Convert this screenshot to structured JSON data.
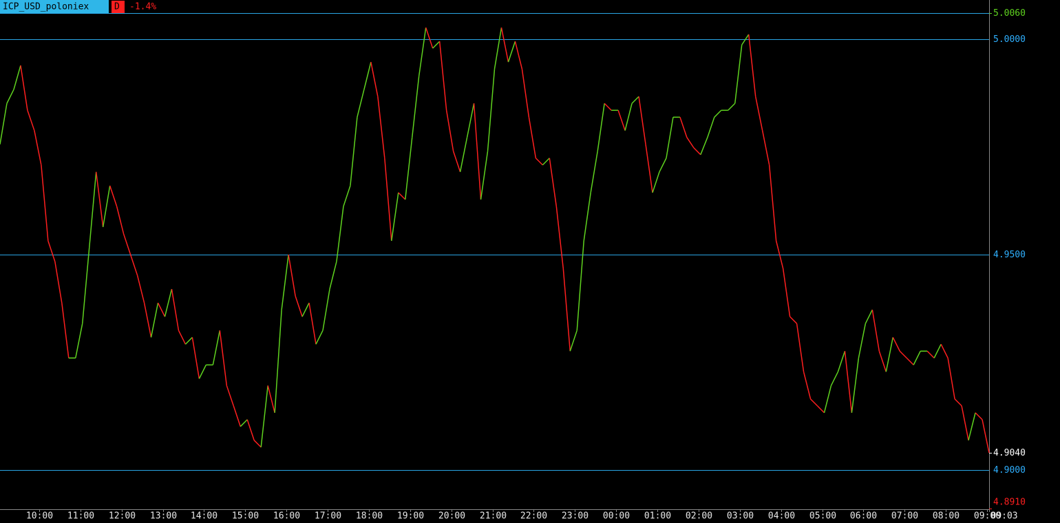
{
  "chart_data": {
    "type": "line",
    "title": "ICP_USD_poloniex",
    "timeframe": "D",
    "change_label": "-1.4%",
    "x": [
      "09:03",
      "09:13",
      "09:23",
      "09:33",
      "09:43",
      "09:53",
      "10:03",
      "10:13",
      "10:23",
      "10:33",
      "10:43",
      "10:53",
      "11:03",
      "11:13",
      "11:23",
      "11:33",
      "11:43",
      "11:53",
      "12:03",
      "12:13",
      "12:23",
      "12:33",
      "12:43",
      "12:53",
      "13:03",
      "13:13",
      "13:23",
      "13:33",
      "13:43",
      "13:53",
      "14:03",
      "14:13",
      "14:23",
      "14:33",
      "14:43",
      "14:53",
      "15:03",
      "15:13",
      "15:23",
      "15:33",
      "15:43",
      "15:53",
      "16:03",
      "16:13",
      "16:23",
      "16:33",
      "16:43",
      "16:53",
      "17:03",
      "17:13",
      "17:23",
      "17:33",
      "17:43",
      "17:53",
      "18:03",
      "18:13",
      "18:23",
      "18:33",
      "18:43",
      "18:53",
      "19:03",
      "19:13",
      "19:23",
      "19:33",
      "19:43",
      "19:53",
      "20:03",
      "20:13",
      "20:23",
      "20:33",
      "20:43",
      "20:53",
      "21:03",
      "21:13",
      "21:23",
      "21:33",
      "21:43",
      "21:53",
      "22:03",
      "22:13",
      "22:23",
      "22:33",
      "22:43",
      "22:53",
      "23:03",
      "23:13",
      "23:23",
      "23:33",
      "23:43",
      "23:53",
      "00:03",
      "00:13",
      "00:23",
      "00:33",
      "00:43",
      "00:53",
      "01:03",
      "01:13",
      "01:23",
      "01:33",
      "01:43",
      "01:53",
      "02:03",
      "02:13",
      "02:23",
      "02:33",
      "02:43",
      "02:53",
      "03:03",
      "03:13",
      "03:23",
      "03:33",
      "03:43",
      "03:53",
      "04:03",
      "04:13",
      "04:23",
      "04:33",
      "04:43",
      "04:53",
      "05:03",
      "05:13",
      "05:23",
      "05:33",
      "05:43",
      "05:53",
      "06:03",
      "06:13",
      "06:23",
      "06:33",
      "06:43",
      "06:53",
      "07:03",
      "07:13",
      "07:23",
      "07:33",
      "07:43",
      "07:53",
      "08:03",
      "08:13",
      "08:23",
      "08:33",
      "08:43",
      "08:53",
      "09:03"
    ],
    "series": [
      {
        "up_color": "#5fd31f",
        "down_color": "#ff1f1f",
        "values": [
          4.9756,
          4.9851,
          4.9883,
          4.9939,
          4.9835,
          4.9788,
          4.9708,
          4.9532,
          4.9484,
          4.9388,
          4.926,
          4.926,
          4.934,
          4.9516,
          4.9692,
          4.9564,
          4.966,
          4.9612,
          4.9548,
          4.95,
          4.9452,
          4.9388,
          4.9308,
          4.9388,
          4.9356,
          4.942,
          4.9324,
          4.9292,
          4.9308,
          4.9212,
          4.9244,
          4.9244,
          4.9324,
          4.9196,
          4.9149,
          4.9101,
          4.9117,
          4.9069,
          4.9053,
          4.9196,
          4.9133,
          4.9372,
          4.95,
          4.9404,
          4.9356,
          4.9388,
          4.9292,
          4.9324,
          4.942,
          4.9484,
          4.9612,
          4.966,
          4.9819,
          4.9883,
          4.9947,
          4.9867,
          4.9724,
          4.9532,
          4.9644,
          4.9628,
          4.9772,
          4.9915,
          5.0027,
          4.9979,
          4.9995,
          4.9835,
          4.974,
          4.9692,
          4.9772,
          4.9851,
          4.9628,
          4.974,
          4.9931,
          5.0027,
          4.9947,
          4.9995,
          4.9931,
          4.9819,
          4.9724,
          4.9708,
          4.9724,
          4.9612,
          4.9468,
          4.9276,
          4.9324,
          4.9532,
          4.9644,
          4.974,
          4.9851,
          4.9835,
          4.9835,
          4.9788,
          4.9851,
          4.9867,
          4.9756,
          4.9644,
          4.9692,
          4.9724,
          4.9819,
          4.9819,
          4.9772,
          4.9748,
          4.9732,
          4.9772,
          4.9819,
          4.9835,
          4.9835,
          4.9851,
          4.9987,
          5.0011,
          4.9867,
          4.9788,
          4.9708,
          4.9532,
          4.9468,
          4.9356,
          4.934,
          4.9228,
          4.9165,
          4.9149,
          4.9133,
          4.9196,
          4.9228,
          4.9276,
          4.9133,
          4.926,
          4.934,
          4.9372,
          4.9276,
          4.9228,
          4.9308,
          4.9276,
          4.926,
          4.9244,
          4.9276,
          4.9276,
          4.926,
          4.9292,
          4.926,
          4.9165,
          4.9149,
          4.9069,
          4.9133,
          4.9117,
          4.904
        ]
      }
    ],
    "ylim": [
      4.8909,
      5.0091
    ],
    "yticks": [
      {
        "value": 5,
        "label": "5.0000"
      },
      {
        "value": 4.95,
        "label": "4.9500"
      },
      {
        "value": 4.9,
        "label": "4.9000"
      }
    ],
    "high": {
      "value": 5.006,
      "label": "5.0060",
      "color": "#5fd31f"
    },
    "low": {
      "value": 4.891,
      "label": "4.8910",
      "color": "#ff1f1f"
    },
    "last": {
      "value": 4.904,
      "label": "4.9040",
      "color": "#ffffff"
    },
    "xticks": [
      "10:00",
      "11:00",
      "12:00",
      "13:00",
      "14:00",
      "15:00",
      "16:00",
      "17:00",
      "18:00",
      "19:00",
      "20:00",
      "21:00",
      "22:00",
      "23:00",
      "00:00",
      "01:00",
      "02:00",
      "03:00",
      "04:00",
      "05:00",
      "06:00",
      "07:00",
      "08:00",
      "09:00",
      "09:03"
    ],
    "grid_color": "#2aa6e6",
    "axis_label_color": "#2fb0ff"
  }
}
